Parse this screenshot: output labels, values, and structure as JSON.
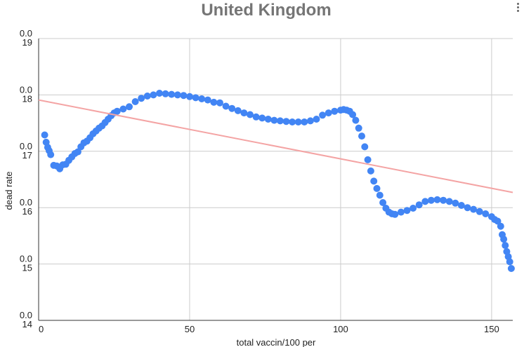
{
  "chart_data": {
    "type": "scatter",
    "title": "United Kingdom",
    "xlabel": "total vaccin/100 per",
    "ylabel": "dead rate",
    "xlim": [
      0,
      157
    ],
    "ylim": [
      0.014,
      0.019
    ],
    "x_ticks": [
      0,
      50,
      100,
      150
    ],
    "y_ticks": [
      {
        "value": 0.014,
        "prefix": "0.0",
        "suffix": "14"
      },
      {
        "value": 0.015,
        "prefix": "0.0",
        "suffix": "15"
      },
      {
        "value": 0.016,
        "prefix": "0.0",
        "suffix": "16"
      },
      {
        "value": 0.017,
        "prefix": "0.0",
        "suffix": "17"
      },
      {
        "value": 0.018,
        "prefix": "0.0",
        "suffix": "18"
      },
      {
        "value": 0.019,
        "prefix": "0.0",
        "suffix": "19"
      }
    ],
    "grid": true,
    "legend": "none",
    "point_color": "#4285f4",
    "trendline": {
      "color": "#f4a4a4",
      "x": [
        0,
        157
      ],
      "y": [
        0.01791,
        0.01627
      ]
    },
    "series": [
      {
        "x": [
          2,
          2.5,
          3,
          3.5,
          4,
          5,
          6,
          7,
          8,
          9,
          10,
          11,
          12,
          13,
          14,
          15,
          16,
          17,
          18,
          19,
          20,
          21,
          22,
          23,
          24,
          25,
          26,
          28,
          30,
          32,
          34,
          36,
          38,
          40,
          42,
          44,
          46,
          48,
          50,
          52,
          54,
          56,
          58,
          60,
          62,
          64,
          66,
          68,
          70,
          72,
          74,
          76,
          78,
          80,
          82,
          84,
          86,
          88,
          90,
          92,
          94,
          96,
          98,
          100,
          101,
          102,
          103,
          104,
          105,
          106,
          107,
          108,
          109,
          110,
          111,
          112,
          113,
          114,
          115,
          116,
          117,
          118,
          120,
          122,
          124,
          126,
          128,
          130,
          132,
          134,
          136,
          138,
          140,
          142,
          144,
          146,
          148,
          150,
          151,
          152,
          153,
          153.5,
          154,
          154.5,
          155,
          155.5,
          156,
          156.5
        ],
        "y": [
          0.01729,
          0.01716,
          0.01707,
          0.01701,
          0.01694,
          0.01675,
          0.01674,
          0.01669,
          0.01676,
          0.01677,
          0.01684,
          0.0169,
          0.01696,
          0.01699,
          0.01708,
          0.01715,
          0.01718,
          0.01724,
          0.01731,
          0.01736,
          0.01741,
          0.01745,
          0.01751,
          0.01757,
          0.01763,
          0.01768,
          0.01771,
          0.01775,
          0.01779,
          0.01788,
          0.01794,
          0.01798,
          0.018,
          0.01803,
          0.01802,
          0.01801,
          0.018,
          0.01799,
          0.01797,
          0.01795,
          0.01793,
          0.01791,
          0.01787,
          0.01786,
          0.0178,
          0.01776,
          0.01772,
          0.01768,
          0.01765,
          0.01761,
          0.01759,
          0.01757,
          0.01755,
          0.01754,
          0.01753,
          0.01752,
          0.01752,
          0.01752,
          0.01754,
          0.01757,
          0.01764,
          0.01768,
          0.01771,
          0.01773,
          0.01774,
          0.01773,
          0.01771,
          0.01765,
          0.01755,
          0.01741,
          0.01727,
          0.01708,
          0.01685,
          0.01665,
          0.01647,
          0.01634,
          0.01622,
          0.01609,
          0.01599,
          0.01592,
          0.01589,
          0.01588,
          0.01592,
          0.01595,
          0.01599,
          0.01605,
          0.01611,
          0.01613,
          0.01614,
          0.01613,
          0.01611,
          0.01608,
          0.01604,
          0.016,
          0.01597,
          0.01593,
          0.01589,
          0.01584,
          0.01579,
          0.01576,
          0.01567,
          0.01552,
          0.01544,
          0.01533,
          0.01522,
          0.01513,
          0.01504,
          0.01492
        ]
      }
    ]
  }
}
